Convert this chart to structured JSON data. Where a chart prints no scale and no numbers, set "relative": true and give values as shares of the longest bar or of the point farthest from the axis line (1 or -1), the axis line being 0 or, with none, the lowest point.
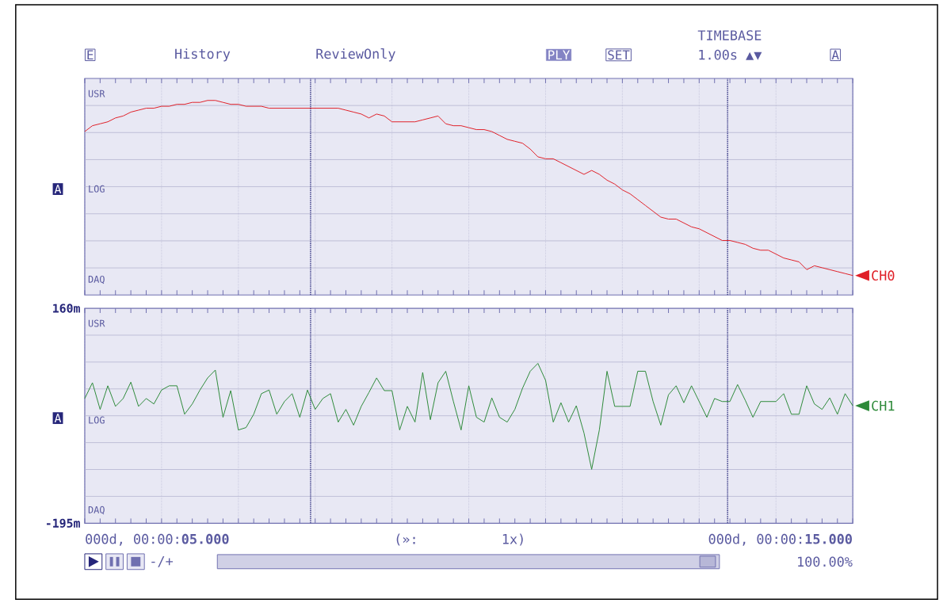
{
  "chart_data": [
    {
      "type": "line",
      "relative": true,
      "categories": [
        null,
        null,
        null,
        null,
        null,
        null,
        null,
        null,
        null,
        null,
        null,
        null,
        null,
        null,
        null,
        null,
        null,
        null,
        null,
        null,
        null,
        null,
        null,
        null,
        null,
        null,
        null,
        null,
        null,
        null,
        null,
        null,
        null,
        null,
        null,
        null,
        null,
        null,
        null,
        null,
        null,
        null,
        null,
        null,
        null,
        null,
        null,
        null,
        null,
        null,
        null,
        null,
        null,
        null,
        null,
        null,
        null,
        null,
        null,
        null,
        null,
        null,
        null,
        null,
        null,
        null,
        null,
        null,
        null,
        null,
        null,
        null,
        null,
        null,
        null,
        null,
        null,
        null,
        null,
        null,
        null,
        null,
        null,
        null,
        null,
        null,
        null,
        null,
        null,
        null,
        null,
        null,
        null,
        null,
        null,
        null,
        null,
        null,
        null,
        null,
        null
      ],
      "tick_labels": false,
      "grid": true,
      "legend": "right",
      "series": [
        {
          "name": "CH0",
          "color": "#e02028",
          "values": [
            0.84,
            0.87,
            0.88,
            0.89,
            0.91,
            0.92,
            0.94,
            0.95,
            0.96,
            0.96,
            0.97,
            0.97,
            0.98,
            0.98,
            0.99,
            0.99,
            1.0,
            1.0,
            0.99,
            0.98,
            0.98,
            0.97,
            0.97,
            0.97,
            0.96,
            0.96,
            0.96,
            0.96,
            0.96,
            0.96,
            0.96,
            0.96,
            0.96,
            0.96,
            0.95,
            0.94,
            0.93,
            0.91,
            0.93,
            0.92,
            0.89,
            0.89,
            0.89,
            0.89,
            0.9,
            0.91,
            0.92,
            0.88,
            0.87,
            0.87,
            0.86,
            0.85,
            0.85,
            0.84,
            0.82,
            0.8,
            0.79,
            0.78,
            0.75,
            0.71,
            0.7,
            0.7,
            0.68,
            0.66,
            0.64,
            0.62,
            0.64,
            0.62,
            0.59,
            0.57,
            0.54,
            0.52,
            0.49,
            0.46,
            0.43,
            0.4,
            0.39,
            0.39,
            0.37,
            0.35,
            0.34,
            0.32,
            0.3,
            0.28,
            0.28,
            0.27,
            0.26,
            0.24,
            0.23,
            0.23,
            0.21,
            0.19,
            0.18,
            0.17,
            0.13,
            0.15,
            0.14,
            0.13,
            0.12,
            0.11,
            0.1
          ]
        }
      ],
      "annotations": [
        "E",
        "History",
        "ReviewOnly",
        "PLY",
        "SET",
        "TIMEBASE",
        "1.00s ▲▼",
        "A",
        "USR",
        "LOG",
        "DAQ",
        "A"
      ]
    },
    {
      "type": "line",
      "categories": [
        null,
        null,
        null,
        null,
        null,
        null,
        null,
        null,
        null,
        null,
        null,
        null,
        null,
        null,
        null,
        null,
        null,
        null,
        null,
        null,
        null,
        null,
        null,
        null,
        null,
        null,
        null,
        null,
        null,
        null,
        null,
        null,
        null,
        null,
        null,
        null,
        null,
        null,
        null,
        null,
        null,
        null,
        null,
        null,
        null,
        null,
        null,
        null,
        null,
        null,
        null,
        null,
        null,
        null,
        null,
        null,
        null,
        null,
        null,
        null,
        null,
        null,
        null,
        null,
        null,
        null,
        null,
        null,
        null,
        null,
        null,
        null,
        null,
        null,
        null,
        null,
        null,
        null,
        null,
        null,
        null,
        null,
        null,
        null,
        null,
        null,
        null,
        null,
        null,
        null,
        null,
        null,
        null,
        null,
        null,
        null,
        null,
        null,
        null,
        null,
        null
      ],
      "ylim": [
        -195,
        160
      ],
      "yticks": [
        {
          "value": 160,
          "label": "160m"
        },
        {
          "value": -195,
          "label": "-195m"
        }
      ],
      "tick_labels": "y",
      "grid": true,
      "legend": "right",
      "series": [
        {
          "name": "CH1",
          "color": "#2e8a3a",
          "values": [
            11,
            37,
            -7,
            32,
            -2,
            11,
            38,
            -2,
            11,
            2,
            25,
            32,
            32,
            -15,
            2,
            25,
            45,
            58,
            -20,
            24,
            -41,
            -37,
            -15,
            19,
            25,
            -15,
            6,
            19,
            -20,
            25,
            -7,
            11,
            19,
            -28,
            -7,
            -33,
            -2,
            21,
            45,
            24,
            24,
            -41,
            -2,
            -28,
            54,
            -24,
            37,
            56,
            6,
            -41,
            32,
            -20,
            -28,
            12,
            -20,
            -28,
            -7,
            28,
            56,
            69,
            41,
            -28,
            4,
            -28,
            -1,
            -46,
            -106,
            -41,
            56,
            -2,
            -2,
            -2,
            56,
            56,
            6,
            -33,
            17,
            32,
            4,
            32,
            6,
            -20,
            11,
            6,
            6,
            34,
            8,
            -20,
            6,
            6,
            6,
            19,
            -15,
            -15,
            32,
            2,
            -7,
            12,
            -15,
            19,
            -1
          ]
        }
      ],
      "annotations": [
        "USR",
        "LOG",
        "DAQ",
        "A",
        "000d, 00:00:**05.000**",
        "(»:",
        "1x)",
        "000d, 00:00:**15.000**",
        "-/+",
        "100.00%"
      ]
    }
  ]
}
